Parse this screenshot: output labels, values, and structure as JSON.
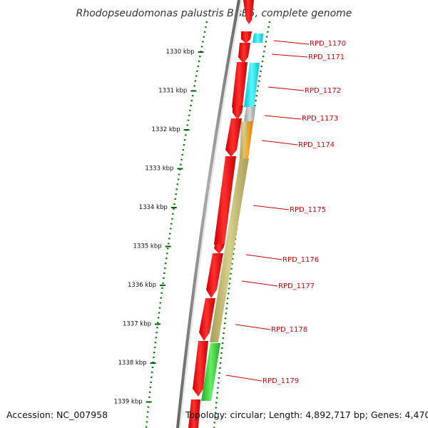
{
  "title": "Rhodopseudomonas palustris BisB5, complete genome",
  "ruler": {
    "ticks": [
      {
        "label": "1330 kbp"
      },
      {
        "label": "1331 kbp"
      },
      {
        "label": "1332 kbp"
      },
      {
        "label": "1333 kbp"
      },
      {
        "label": "1334 kbp"
      },
      {
        "label": "1335 kbp"
      },
      {
        "label": "1336 kbp"
      },
      {
        "label": "1337 kbp"
      },
      {
        "label": "1338 kbp"
      },
      {
        "label": "1339 kbp"
      }
    ]
  },
  "colors": {
    "forward_cds": "#ee0000",
    "backbone": "#888888",
    "cyan": "#00e5ee",
    "grey": "#bbbbbb",
    "orange": "#ff9900",
    "khaki": "#bdb76b",
    "green": "#33cc33",
    "label": "#cc0000",
    "dotted_ring": "#007700"
  },
  "genes": [
    {
      "label": "RPD_1170"
    },
    {
      "label": "RPD_1171"
    },
    {
      "label": "RPD_1172"
    },
    {
      "label": "RPD_1173"
    },
    {
      "label": "RPD_1174"
    },
    {
      "label": "RPD_1175"
    },
    {
      "label": "RPD_1176"
    },
    {
      "label": "RPD_1177"
    },
    {
      "label": "RPD_1178"
    },
    {
      "label": "RPD_1179"
    }
  ],
  "footer": {
    "accession": "Accession: NC_007958",
    "topology": "Topology: circular; Length: 4,892,717 bp; Genes: 4,470"
  }
}
